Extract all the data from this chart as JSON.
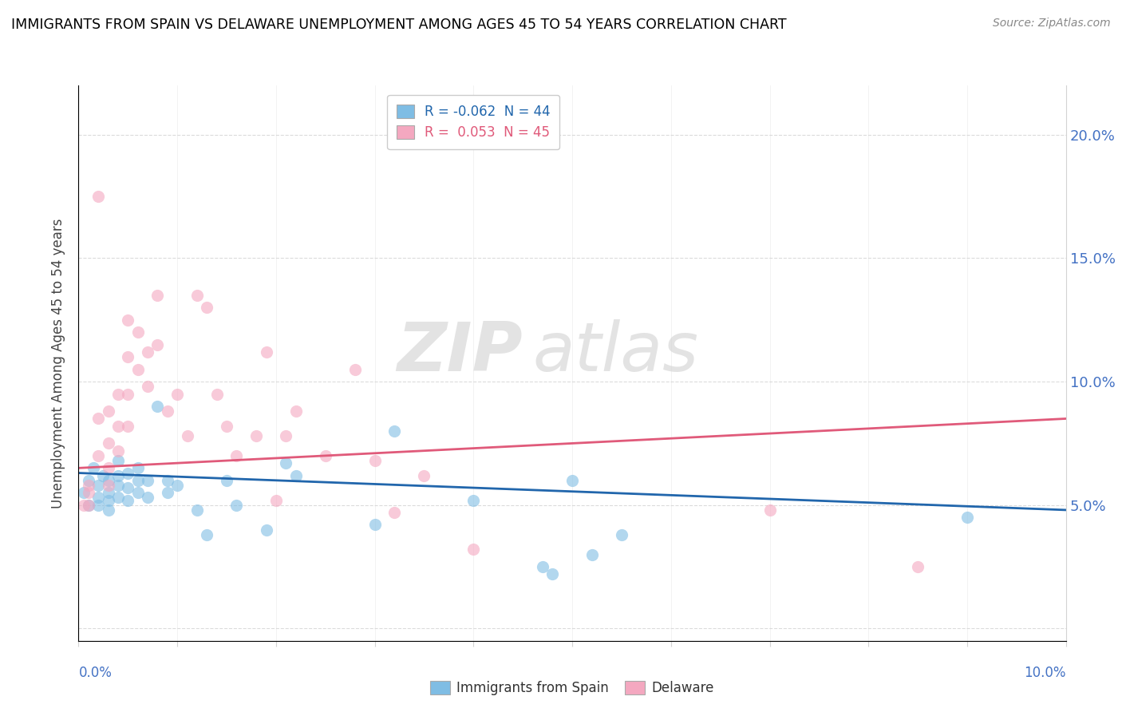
{
  "title": "IMMIGRANTS FROM SPAIN VS DELAWARE UNEMPLOYMENT AMONG AGES 45 TO 54 YEARS CORRELATION CHART",
  "source": "Source: ZipAtlas.com",
  "ylabel": "Unemployment Among Ages 45 to 54 years",
  "legend_label1": "Immigrants from Spain",
  "legend_label2": "Delaware",
  "r1": "-0.062",
  "n1": "44",
  "r2": "0.053",
  "n2": "45",
  "color1": "#7fbde4",
  "color2": "#f4a8c0",
  "trendline1_color": "#2166ac",
  "trendline2_color": "#e05a7a",
  "watermark_text": "ZIP",
  "watermark_text2": "atlas",
  "xlim": [
    0.0,
    0.1
  ],
  "ylim": [
    -0.005,
    0.22
  ],
  "yticks": [
    0.0,
    0.05,
    0.1,
    0.15,
    0.2
  ],
  "ytick_labels_right": [
    "",
    "5.0%",
    "10.0%",
    "15.0%",
    "20.0%"
  ],
  "xtick_label_left": "0.0%",
  "xtick_label_right": "10.0%",
  "scatter1_x": [
    0.0005,
    0.001,
    0.001,
    0.0015,
    0.002,
    0.002,
    0.002,
    0.0025,
    0.003,
    0.003,
    0.003,
    0.003,
    0.004,
    0.004,
    0.004,
    0.004,
    0.005,
    0.005,
    0.005,
    0.006,
    0.006,
    0.006,
    0.007,
    0.007,
    0.008,
    0.009,
    0.009,
    0.01,
    0.012,
    0.013,
    0.015,
    0.016,
    0.019,
    0.021,
    0.022,
    0.03,
    0.032,
    0.04,
    0.047,
    0.048,
    0.05,
    0.052,
    0.055,
    0.09
  ],
  "scatter1_y": [
    0.055,
    0.06,
    0.05,
    0.065,
    0.058,
    0.053,
    0.05,
    0.062,
    0.06,
    0.055,
    0.052,
    0.048,
    0.068,
    0.062,
    0.058,
    0.053,
    0.063,
    0.057,
    0.052,
    0.065,
    0.06,
    0.055,
    0.06,
    0.053,
    0.09,
    0.06,
    0.055,
    0.058,
    0.048,
    0.038,
    0.06,
    0.05,
    0.04,
    0.067,
    0.062,
    0.042,
    0.08,
    0.052,
    0.025,
    0.022,
    0.06,
    0.03,
    0.038,
    0.045
  ],
  "scatter2_x": [
    0.0005,
    0.001,
    0.001,
    0.001,
    0.002,
    0.002,
    0.002,
    0.003,
    0.003,
    0.003,
    0.003,
    0.004,
    0.004,
    0.004,
    0.005,
    0.005,
    0.005,
    0.005,
    0.006,
    0.006,
    0.007,
    0.007,
    0.008,
    0.008,
    0.009,
    0.01,
    0.011,
    0.012,
    0.013,
    0.014,
    0.015,
    0.016,
    0.018,
    0.019,
    0.02,
    0.021,
    0.022,
    0.025,
    0.028,
    0.03,
    0.032,
    0.035,
    0.04,
    0.07,
    0.085
  ],
  "scatter2_y": [
    0.05,
    0.058,
    0.055,
    0.05,
    0.175,
    0.085,
    0.07,
    0.088,
    0.075,
    0.065,
    0.058,
    0.095,
    0.082,
    0.072,
    0.125,
    0.11,
    0.095,
    0.082,
    0.12,
    0.105,
    0.112,
    0.098,
    0.135,
    0.115,
    0.088,
    0.095,
    0.078,
    0.135,
    0.13,
    0.095,
    0.082,
    0.07,
    0.078,
    0.112,
    0.052,
    0.078,
    0.088,
    0.07,
    0.105,
    0.068,
    0.047,
    0.062,
    0.032,
    0.048,
    0.025
  ],
  "trendline1_x": [
    0.0,
    0.1
  ],
  "trendline1_y": [
    0.063,
    0.048
  ],
  "trendline2_x": [
    0.0,
    0.1
  ],
  "trendline2_y": [
    0.065,
    0.085
  ]
}
